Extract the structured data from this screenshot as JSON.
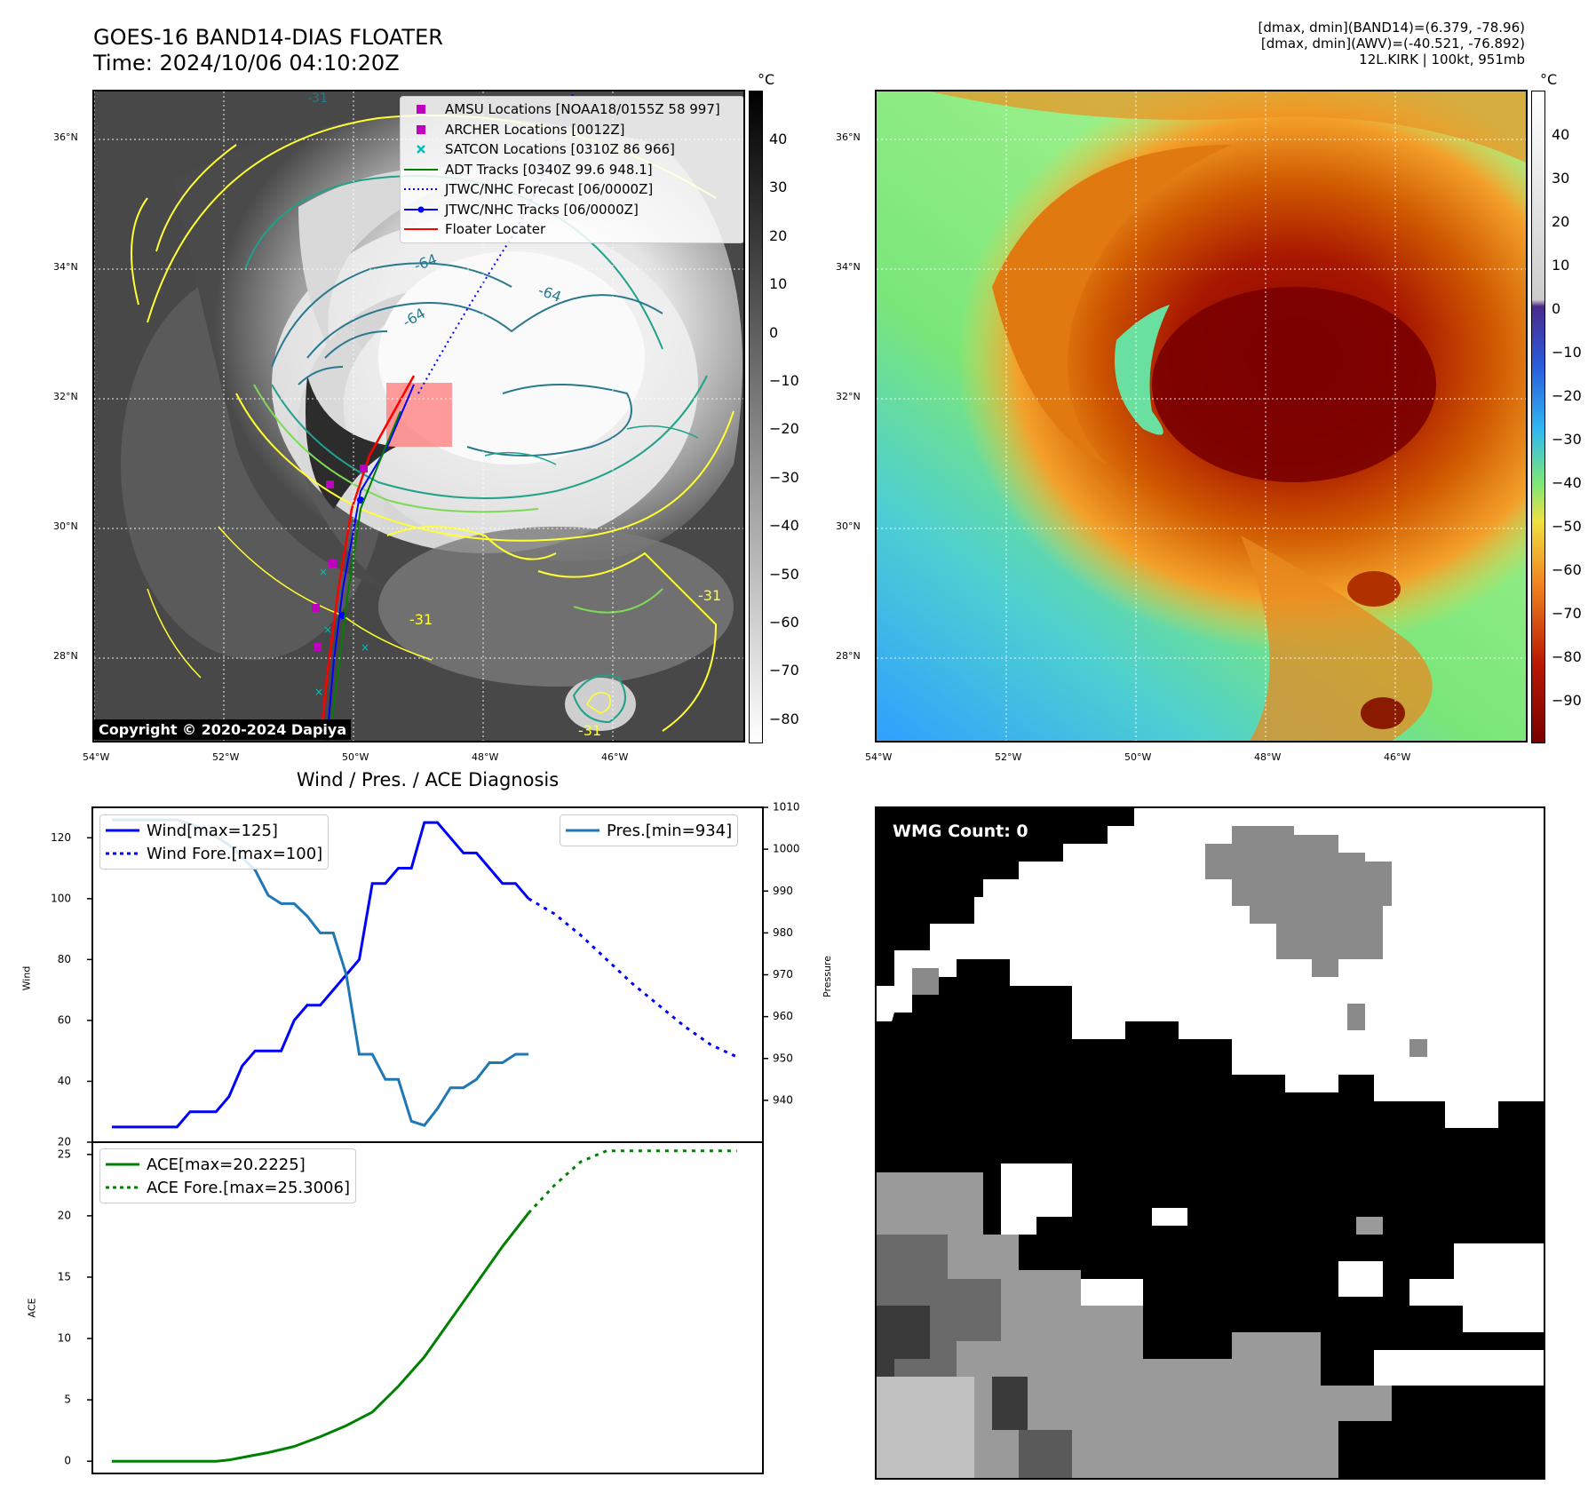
{
  "header": {
    "title_line1": "GOES-16 BAND14-DIAS FLOATER",
    "title_line2": "Time: 2024/10/06 04:10:20Z",
    "info_line1": "[dmax, dmin](BAND14)=(6.379, -78.96)",
    "info_line2": "[dmax, dmin](AWV)=(-40.521, -76.892)",
    "info_line3": "12L.KIRK | 100kt, 951mb"
  },
  "map_axes": {
    "lat_labels": [
      "36°N",
      "34°N",
      "32°N",
      "30°N",
      "28°N"
    ],
    "lon_labels": [
      "54°W",
      "52°W",
      "50°W",
      "48°W",
      "46°W"
    ]
  },
  "ir_panel": {
    "colorbar_unit": "°C",
    "colorbar_ticks": [
      "40",
      "30",
      "20",
      "10",
      "0",
      "−10",
      "−20",
      "−30",
      "−40",
      "−50",
      "−60",
      "−70",
      "−80"
    ],
    "copyright": "Copyright © 2020-2024 Dapiya",
    "contour_labels": [
      "-31",
      "-64",
      "-64",
      "-64",
      "-31",
      "-31",
      "-31"
    ],
    "legend": [
      {
        "label": "AMSU Locations [NOAA18/0155Z 58 997]",
        "symbol": "square",
        "color": "#bf00bf"
      },
      {
        "label": "ARCHER Locations [0012Z]",
        "symbol": "square",
        "color": "#bf00bf"
      },
      {
        "label": "SATCON Locations [0310Z 86 966]",
        "symbol": "x",
        "color": "#00bfbf"
      },
      {
        "label": "ADT Tracks [0340Z 99.6 948.1]",
        "symbol": "line",
        "color": "#008000"
      },
      {
        "label": "JTWC/NHC Forecast [06/0000Z]",
        "symbol": "dotted",
        "color": "#0000ff"
      },
      {
        "label": "JTWC/NHC Tracks [06/0000Z]",
        "symbol": "line-dot",
        "color": "#0000ff"
      },
      {
        "label": "Floater Locater",
        "symbol": "line",
        "color": "#ff0000"
      }
    ]
  },
  "awv_panel": {
    "colorbar_unit": "°C",
    "colorbar_ticks": [
      "40",
      "30",
      "20",
      "10",
      "0",
      "−10",
      "−20",
      "−30",
      "−40",
      "−50",
      "−60",
      "−70",
      "−80",
      "−90"
    ]
  },
  "wmg_panel": {
    "label": "WMG Count: 0"
  },
  "chart_data": [
    {
      "type": "line",
      "title": "Wind / Pres. / ACE Diagnosis",
      "ylabel": "Wind",
      "ylabel_right": "Pressure",
      "ylim": [
        20,
        130
      ],
      "ylim_right": [
        930,
        1010
      ],
      "yticks": [
        "120",
        "100",
        "80",
        "60",
        "40",
        "20"
      ],
      "yticks_right": [
        "1010",
        "1000",
        "990",
        "980",
        "970",
        "960",
        "950",
        "940"
      ],
      "series": [
        {
          "name": "Wind[max=125]",
          "color": "#0000ff",
          "style": "solid",
          "x": [
            0,
            1,
            2,
            3,
            4,
            5,
            6,
            7,
            8,
            9,
            10,
            11,
            12,
            13,
            14,
            15,
            16,
            17,
            18,
            19,
            20,
            21,
            22,
            23,
            24,
            25,
            26,
            27,
            28,
            29,
            30,
            31,
            32
          ],
          "values": [
            25,
            25,
            25,
            25,
            25,
            25,
            30,
            30,
            30,
            35,
            45,
            50,
            50,
            50,
            60,
            65,
            65,
            70,
            75,
            80,
            105,
            105,
            110,
            110,
            125,
            125,
            120,
            115,
            115,
            110,
            105,
            105,
            100
          ]
        },
        {
          "name": "Wind Fore.[max=100]",
          "color": "#0000ff",
          "style": "dotted",
          "x": [
            32,
            34,
            36,
            38,
            40,
            42,
            44,
            46,
            48
          ],
          "values": [
            100,
            95,
            88,
            80,
            72,
            65,
            58,
            52,
            48
          ]
        },
        {
          "name": "Pres.[min=934]",
          "color": "#1f77b4",
          "style": "solid",
          "axis": "right",
          "x": [
            0,
            1,
            2,
            3,
            4,
            5,
            6,
            7,
            8,
            9,
            10,
            11,
            12,
            13,
            14,
            15,
            16,
            17,
            18,
            19,
            20,
            21,
            22,
            23,
            24,
            25,
            26,
            27,
            28,
            29,
            30,
            31,
            32
          ],
          "values": [
            1007,
            1007,
            1007,
            1007,
            1007,
            1007,
            1006,
            1005,
            1003,
            1001,
            998,
            995,
            989,
            987,
            987,
            984,
            980,
            980,
            970,
            951,
            951,
            945,
            945,
            935,
            934,
            938,
            943,
            943,
            945,
            949,
            949,
            951,
            951
          ]
        }
      ]
    },
    {
      "type": "line",
      "ylabel": "ACE",
      "ylim": [
        -1,
        26
      ],
      "yticks": [
        "25",
        "20",
        "15",
        "10",
        "5",
        "0"
      ],
      "series": [
        {
          "name": "ACE[max=20.2225]",
          "color": "#008000",
          "style": "solid",
          "x": [
            0,
            4,
            8,
            9,
            10,
            12,
            14,
            16,
            18,
            20,
            22,
            24,
            26,
            28,
            30,
            32
          ],
          "values": [
            0,
            0,
            0,
            0.1,
            0.3,
            0.7,
            1.2,
            2.0,
            2.9,
            4.0,
            6.1,
            8.5,
            11.5,
            14.5,
            17.5,
            20.22
          ]
        },
        {
          "name": "ACE Fore.[max=25.3006]",
          "color": "#008000",
          "style": "dotted",
          "x": [
            32,
            34,
            36,
            38,
            40,
            42,
            44,
            46,
            48
          ],
          "values": [
            20.22,
            22.5,
            24.4,
            25.3,
            25.3,
            25.3,
            25.3,
            25.3,
            25.3
          ]
        }
      ]
    }
  ]
}
